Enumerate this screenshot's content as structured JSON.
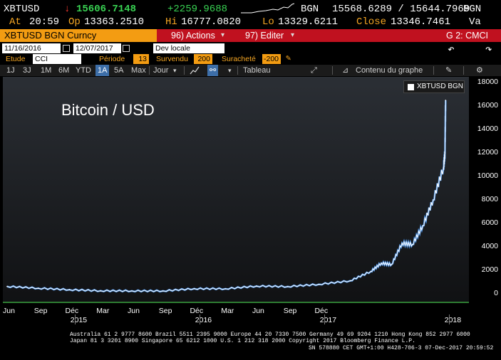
{
  "quote": {
    "ticker": "XBTUSD",
    "arrow": "↓",
    "last": "15606.7148",
    "change": "+2259.9688",
    "source": "BGN",
    "bid_ask": "15568.6289 / 15644.7969",
    "source2": "BGN",
    "at_label": "At",
    "time": "20:59",
    "open_label": "Op",
    "open": "13363.2510",
    "high_label": "Hi",
    "high": "16777.0820",
    "low_label": "Lo",
    "low": "13329.6211",
    "close_label": "Close",
    "close": "13346.7461",
    "va": "Va"
  },
  "security_bar": {
    "label": "XBTUSD BGN Curncy",
    "actions": "96) Actions",
    "edit": "97) Editer",
    "page": "G 2: CMCI"
  },
  "controls": {
    "start_date": "11/16/2016",
    "end_date": "12/07/2017",
    "currency": "Dev locale",
    "study_label": "Etude",
    "study_value": "CCI",
    "period_label": "Période",
    "period_value": "13",
    "oversold_label": "Survendu",
    "oversold_value": "200",
    "overbought_label": "Suracheté",
    "overbought_value": "-200"
  },
  "toolbar": {
    "ranges": [
      "1J",
      "3J",
      "1M",
      "6M",
      "YTD",
      "1A",
      "5A",
      "Max"
    ],
    "selected_range": "1A",
    "frequency": "Jour",
    "table": "Tableau",
    "content": "Contenu du graphe"
  },
  "chart_data": {
    "type": "line",
    "title": "Bitcoin / USD",
    "series": [
      {
        "name": "XBTUSD BGN"
      }
    ],
    "x": [
      "2014-06",
      "2014-09",
      "2014-12",
      "2015-03",
      "2015-06",
      "2015-09",
      "2015-12",
      "2016-03",
      "2016-06",
      "2016-09",
      "2016-12",
      "2017-03",
      "2017-05",
      "2017-06",
      "2017-07",
      "2017-08",
      "2017-09",
      "2017-10",
      "2017-11",
      "2017-12-01",
      "2017-12-05",
      "2017-12-07"
    ],
    "values": [
      620,
      470,
      340,
      250,
      240,
      235,
      430,
      420,
      650,
      610,
      800,
      1100,
      1900,
      2600,
      2500,
      4300,
      4200,
      5800,
      8000,
      10800,
      12000,
      16500
    ],
    "ylim": [
      -800,
      18500
    ],
    "y_ticks": [
      0,
      2000,
      4000,
      6000,
      8000,
      10000,
      12000,
      14000,
      16000,
      18000
    ],
    "x_ticks": [
      "Jun",
      "Sep",
      "Déc",
      "Mar",
      "Jun",
      "Sep",
      "Déc",
      "Mar",
      "Jun",
      "Sep",
      "Déc"
    ],
    "years": [
      "2015",
      "2016",
      "2017",
      "2018"
    ],
    "grid": false,
    "legend": "top-right",
    "line_color": "#ffffff",
    "accent_color": "#4a90e2"
  },
  "footer": {
    "line1": "Australia 61 2 9777 8600 Brazil 5511 2395 9000 Europe 44 20 7330 7500 Germany 49 69 9204 1210 Hong Kong 852 2977 6000",
    "line2": "Japan 81 3 3201 8900         Singapore 65 6212 1000         U.S. 1 212 318 2000        Copyright 2017 Bloomberg Finance L.P.",
    "line3": "SN 578880 CET  GMT+1:00 H428-706-3 07-Dec-2017 20:59:52"
  }
}
